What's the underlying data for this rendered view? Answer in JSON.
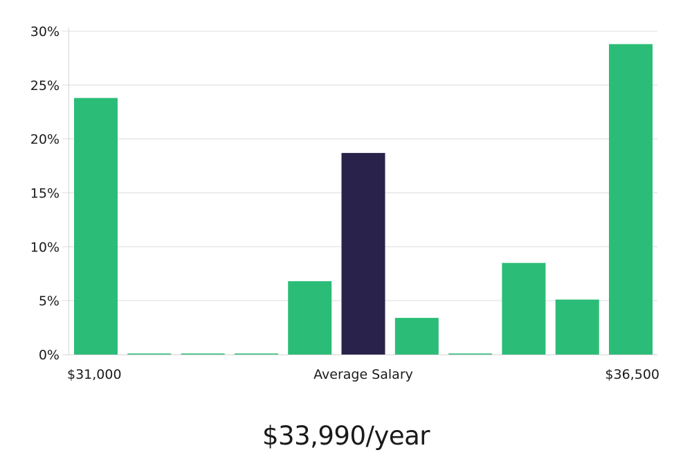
{
  "colors": {
    "bar": "#2bbd77",
    "highlight": "#29224a",
    "grid": "#dcdcdc",
    "axis": "#d5d5d5",
    "text": "#1a1a1a"
  },
  "salary_text": "$33,990/year",
  "chart_data": {
    "type": "bar",
    "ylim": [
      0,
      30
    ],
    "yticks": [
      0,
      5,
      10,
      15,
      20,
      25,
      30
    ],
    "ytick_labels": [
      "0%",
      "5%",
      "10%",
      "15%",
      "20%",
      "25%",
      "30%"
    ],
    "grid": true,
    "values": [
      23.8,
      0,
      0,
      0,
      6.8,
      18.7,
      3.4,
      0,
      8.5,
      5.1,
      28.8
    ],
    "highlight_index": 5,
    "x_labels": {
      "min": "$31,000",
      "middle": "Average Salary",
      "max": "$36,500"
    }
  }
}
